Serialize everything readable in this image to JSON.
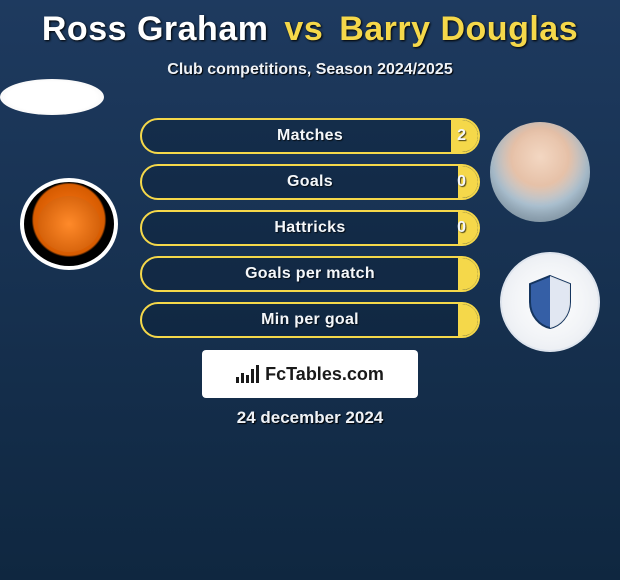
{
  "title": {
    "player1": "Ross Graham",
    "vs": "vs",
    "player2": "Barry Douglas"
  },
  "subtitle": "Club competitions, Season 2024/2025",
  "colors": {
    "accent": "#f5d84a",
    "bg_top": "#1e3a5f",
    "bg_bottom": "#0f2740",
    "text": "#ffffff"
  },
  "rows": [
    {
      "label": "Matches",
      "left": "",
      "right": "2",
      "fill_left_pct": 0,
      "fill_right_pct": 8
    },
    {
      "label": "Goals",
      "left": "",
      "right": "0",
      "fill_left_pct": 0,
      "fill_right_pct": 6
    },
    {
      "label": "Hattricks",
      "left": "",
      "right": "0",
      "fill_left_pct": 0,
      "fill_right_pct": 6
    },
    {
      "label": "Goals per match",
      "left": "",
      "right": "",
      "fill_left_pct": 0,
      "fill_right_pct": 6
    },
    {
      "label": "Min per goal",
      "left": "",
      "right": "",
      "fill_left_pct": 0,
      "fill_right_pct": 6
    }
  ],
  "brand": "FcTables.com",
  "date": "24 december 2024",
  "left_side": {
    "avatar": "placeholder",
    "crest": "dundee-united"
  },
  "right_side": {
    "avatar": "barry-douglas",
    "crest": "st-johnstone"
  }
}
